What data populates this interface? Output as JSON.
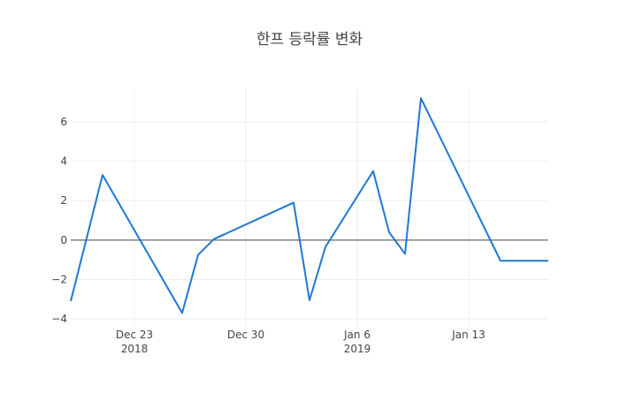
{
  "chart_data": {
    "type": "line",
    "title": "한프 등락률 변화",
    "xlabel": "",
    "ylabel": "",
    "xlim": [
      "2018-12-19",
      "2019-01-18"
    ],
    "ylim": [
      -4.4,
      7.7
    ],
    "grid": true,
    "zero_line": true,
    "legend": "none",
    "x_ticks": [
      {
        "date": "2018-12-23",
        "label": "Dec 23",
        "sublabel": "2018"
      },
      {
        "date": "2018-12-30",
        "label": "Dec 30",
        "sublabel": ""
      },
      {
        "date": "2019-01-06",
        "label": "Jan 6",
        "sublabel": "2019"
      },
      {
        "date": "2019-01-13",
        "label": "Jan 13",
        "sublabel": ""
      }
    ],
    "y_ticks": [
      {
        "value": -4,
        "label": "−4"
      },
      {
        "value": -2,
        "label": "−2"
      },
      {
        "value": 0,
        "label": "0"
      },
      {
        "value": 2,
        "label": "2"
      },
      {
        "value": 4,
        "label": "4"
      },
      {
        "value": 6,
        "label": "6"
      }
    ],
    "series": [
      {
        "color": "#1f77d4",
        "x": [
          "2018-12-19",
          "2018-12-21",
          "2018-12-26",
          "2018-12-27",
          "2018-12-28",
          "2019-01-02",
          "2019-01-03",
          "2019-01-04",
          "2019-01-07",
          "2019-01-08",
          "2019-01-09",
          "2019-01-10",
          "2019-01-15",
          "2019-01-16",
          "2019-01-18"
        ],
        "y": [
          -3.1,
          3.3,
          -3.7,
          -0.75,
          0.05,
          1.9,
          -3.05,
          -0.35,
          3.5,
          0.4,
          -0.7,
          7.2,
          -1.05,
          -1.05,
          -1.05
        ]
      }
    ]
  }
}
